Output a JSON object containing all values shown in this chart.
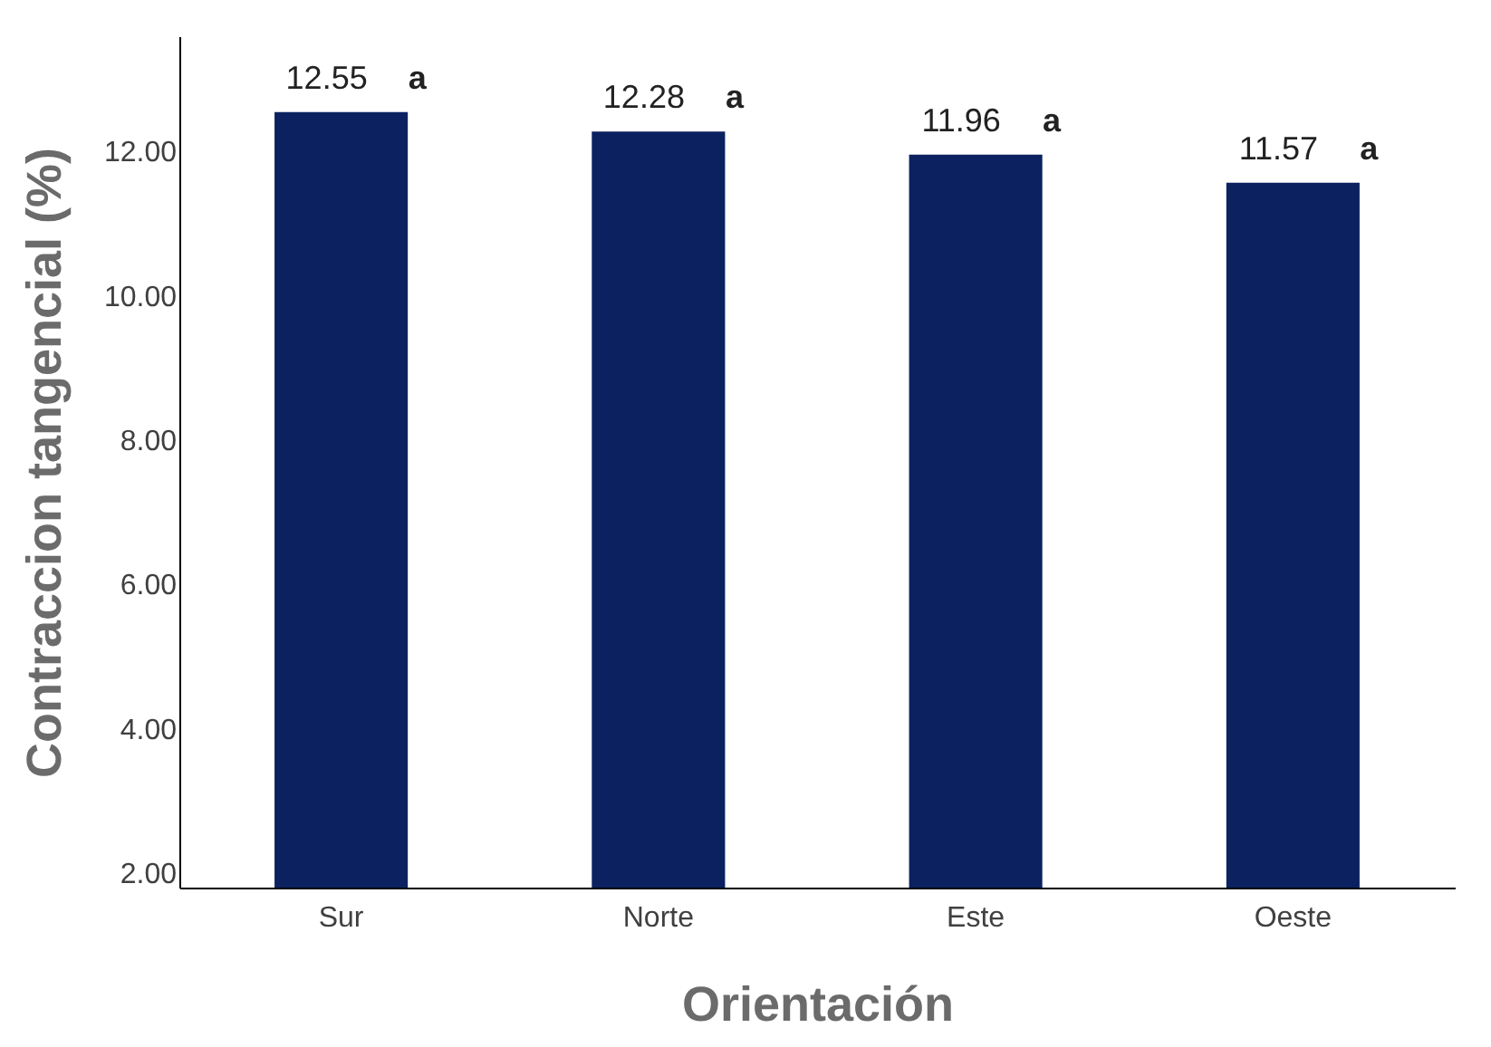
{
  "chart_data": {
    "type": "bar",
    "xlabel": "Orientación",
    "ylabel": "Contraccion tangencial (%)",
    "categories": [
      "Sur",
      "Norte",
      "Este",
      "Oeste"
    ],
    "values": [
      12.55,
      12.28,
      11.96,
      11.57
    ],
    "color": "#0b2160",
    "ylim": [
      1.8,
      13.6
    ],
    "yticks": [
      {
        "value": 2,
        "label": "2.00"
      },
      {
        "value": 4,
        "label": "4.00"
      },
      {
        "value": 6,
        "label": "6.00"
      },
      {
        "value": 8,
        "label": "8.00"
      },
      {
        "value": 10,
        "label": "10.00"
      },
      {
        "value": 12,
        "label": "12.00"
      }
    ],
    "data_labels": true,
    "grid": false,
    "annotations": [
      {
        "text": "a",
        "x": "Sur",
        "y": 12.55
      },
      {
        "text": "a",
        "x": "Norte",
        "y": 12.28
      },
      {
        "text": "a",
        "x": "Este",
        "y": 11.96
      },
      {
        "text": "a",
        "x": "Oeste",
        "y": 11.57
      }
    ]
  }
}
